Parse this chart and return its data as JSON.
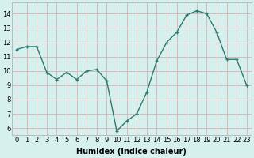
{
  "x": [
    0,
    1,
    2,
    3,
    4,
    5,
    6,
    7,
    8,
    9,
    10,
    11,
    12,
    13,
    14,
    15,
    16,
    17,
    18,
    19,
    20,
    21,
    22,
    23
  ],
  "y": [
    11.5,
    11.7,
    11.7,
    9.9,
    9.4,
    9.9,
    9.4,
    10.0,
    10.1,
    9.3,
    5.8,
    6.5,
    7.0,
    8.5,
    10.7,
    12.0,
    12.7,
    13.9,
    14.2,
    14.0,
    12.7,
    10.8,
    10.8,
    9.0
  ],
  "line_color": "#2d7a6e",
  "marker": "+",
  "marker_size": 3,
  "bg_color": "#d6f0ee",
  "grid_color": "#d9b0b0",
  "xlabel": "Humidex (Indice chaleur)",
  "ylim": [
    5.5,
    14.8
  ],
  "xlim": [
    -0.5,
    23.5
  ],
  "yticks": [
    6,
    7,
    8,
    9,
    10,
    11,
    12,
    13,
    14
  ],
  "xticks": [
    0,
    1,
    2,
    3,
    4,
    5,
    6,
    7,
    8,
    9,
    10,
    11,
    12,
    13,
    14,
    15,
    16,
    17,
    18,
    19,
    20,
    21,
    22,
    23
  ],
  "xlabel_fontsize": 7,
  "tick_fontsize": 6,
  "line_width": 1.0,
  "fig_width": 3.2,
  "fig_height": 2.0,
  "dpi": 100
}
